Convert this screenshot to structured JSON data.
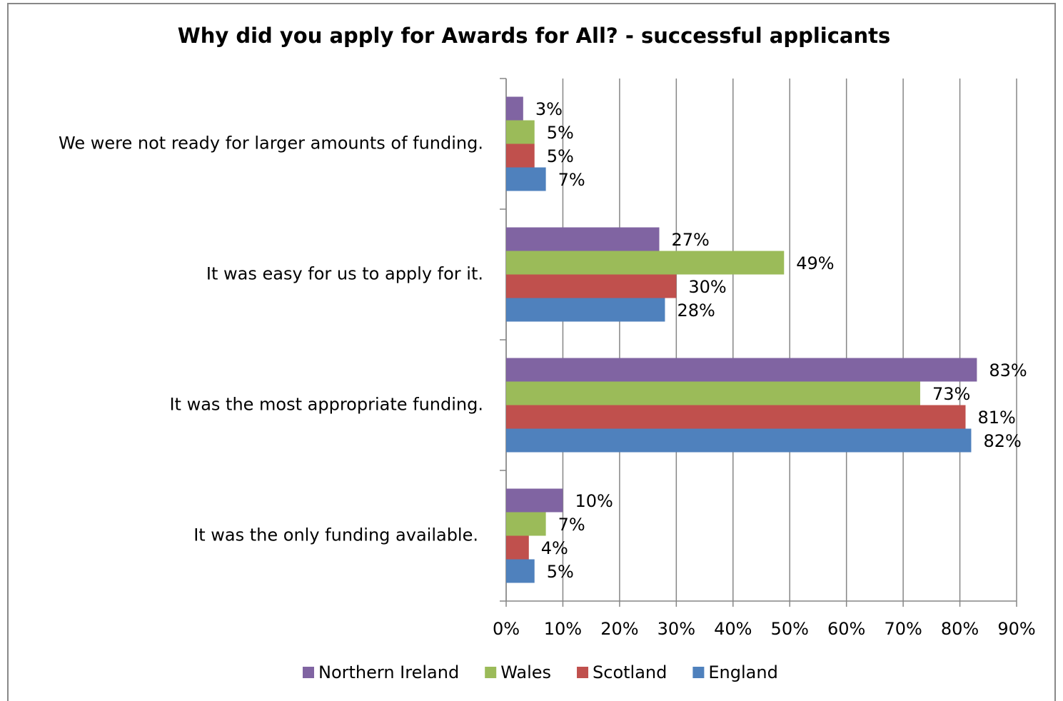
{
  "chart_data": {
    "type": "barh",
    "title": "Why did you apply for Awards for All? - successful applicants",
    "categories": [
      "We were not ready for larger amounts of funding.",
      "It was easy for us to apply for it.",
      "It was the most appropriate funding.",
      "It was the only funding available."
    ],
    "series": [
      {
        "name": "Northern Ireland",
        "color": "#8064a2",
        "values": [
          3,
          27,
          83,
          10
        ],
        "value_labels": [
          "3%",
          "27%",
          "83%",
          "10%"
        ]
      },
      {
        "name": "Wales",
        "color": "#9bbb59",
        "values": [
          5,
          49,
          73,
          7
        ],
        "value_labels": [
          "5%",
          "49%",
          "73%",
          "7%"
        ]
      },
      {
        "name": "Scotland",
        "color": "#c0504d",
        "values": [
          5,
          30,
          81,
          4
        ],
        "value_labels": [
          "5%",
          "30%",
          "81%",
          "4%"
        ]
      },
      {
        "name": "England",
        "color": "#4f81bd",
        "values": [
          7,
          28,
          82,
          5
        ],
        "value_labels": [
          "7%",
          "28%",
          "82%",
          "5%"
        ]
      }
    ],
    "xlim": [
      0,
      90
    ],
    "xticks": [
      {
        "value": 0,
        "label": "0%"
      },
      {
        "value": 10,
        "label": "10%"
      },
      {
        "value": 20,
        "label": "20%"
      },
      {
        "value": 30,
        "label": "30%"
      },
      {
        "value": 40,
        "label": "40%"
      },
      {
        "value": 50,
        "label": "50%"
      },
      {
        "value": 60,
        "label": "60%"
      },
      {
        "value": 70,
        "label": "70%"
      },
      {
        "value": 80,
        "label": "80%"
      },
      {
        "value": 90,
        "label": "90%"
      }
    ],
    "grid": true,
    "legend": "bottom"
  }
}
